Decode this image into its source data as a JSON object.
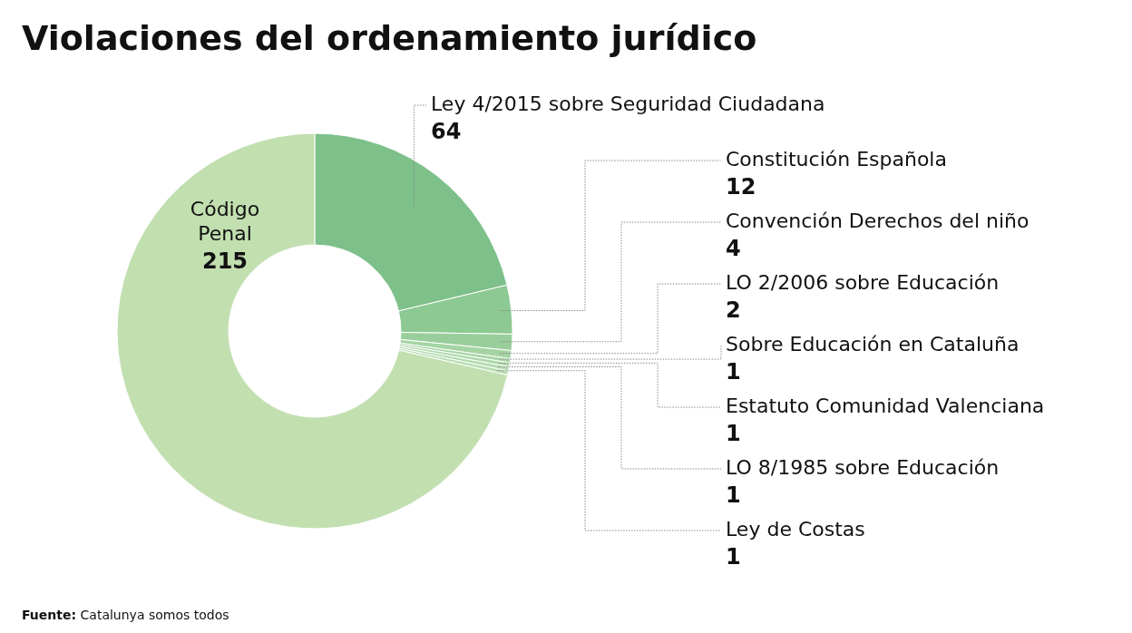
{
  "chart_data": {
    "type": "donut",
    "title": "Violaciones del ordenamiento jurídico",
    "categories": [
      "Ley 4/2015 sobre Seguridad Ciudadana",
      "Constitución Española",
      "Convención Derechos del niño",
      "LO 2/2006 sobre Educación",
      "Sobre Educación en Cataluña",
      "Estatuto Comunidad Valenciana",
      "LO 8/1985 sobre Educación",
      "Ley de Costas",
      "Código Penal"
    ],
    "values": [
      64,
      12,
      4,
      2,
      1,
      1,
      1,
      1,
      215
    ],
    "colors": [
      "#7dc08a",
      "#8dc993",
      "#98ce9b",
      "#a4d4a3",
      "#a9d6a6",
      "#add8a9",
      "#b2daad",
      "#b6dcb0",
      "#c2dfb0"
    ],
    "data_labels": true,
    "annotations": [
      "Fuente: Catalunya somos todos"
    ]
  }
}
